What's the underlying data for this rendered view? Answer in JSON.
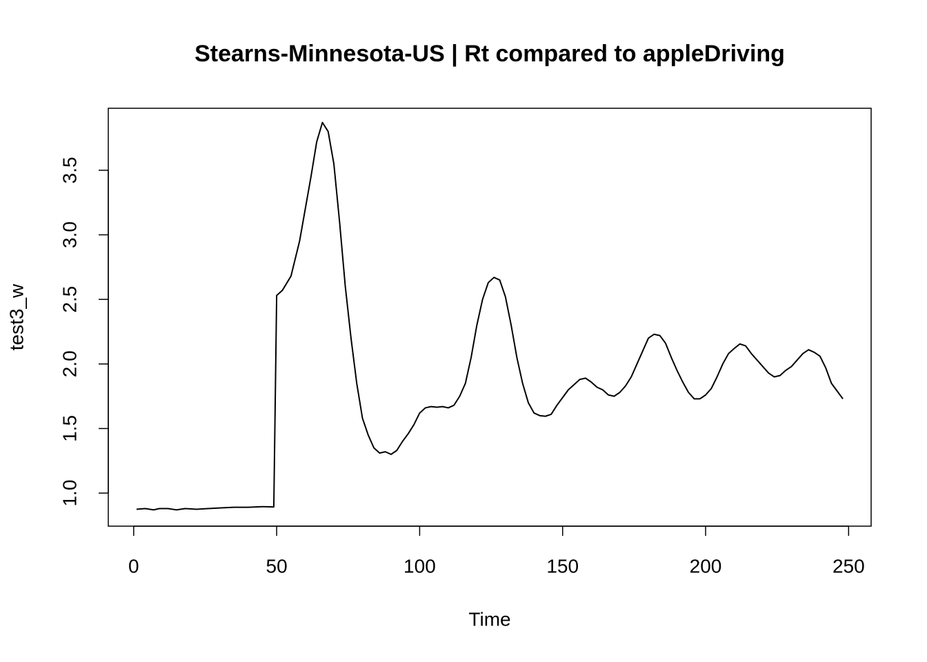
{
  "chart_data": {
    "type": "line",
    "title": "Stearns-Minnesota-US | Rt compared to appleDriving",
    "x_label": "Time",
    "y_label": "test3_w",
    "xlim": [
      -8.88,
      257.88
    ],
    "ylim": [
      0.744,
      3.98
    ],
    "xticks": [
      0,
      50,
      100,
      150,
      200,
      250
    ],
    "yticks": [
      {
        "value": 1,
        "label": "1.0"
      },
      1.5,
      {
        "value": 2,
        "label": "2.0"
      },
      2.5,
      {
        "value": 3,
        "label": "3.0"
      },
      3.5
    ],
    "x": [
      1,
      4,
      7,
      9,
      12,
      15,
      18,
      22,
      26,
      30,
      35,
      40,
      45,
      49,
      50,
      52,
      55,
      58,
      60,
      62,
      64,
      66,
      68,
      70,
      72,
      74,
      76,
      78,
      80,
      82,
      84,
      86,
      88,
      90,
      92,
      94,
      96,
      98,
      100,
      102,
      104,
      106,
      108,
      110,
      112,
      114,
      116,
      118,
      120,
      122,
      124,
      126,
      128,
      130,
      132,
      134,
      136,
      138,
      140,
      142,
      144,
      146,
      148,
      150,
      152,
      154,
      156,
      158,
      160,
      162,
      164,
      166,
      168,
      170,
      172,
      174,
      176,
      178,
      180,
      182,
      184,
      186,
      188,
      190,
      192,
      194,
      196,
      198,
      200,
      202,
      204,
      206,
      208,
      210,
      212,
      214,
      216,
      218,
      220,
      222,
      224,
      226,
      228,
      230,
      232,
      234,
      236,
      238,
      240,
      242,
      244,
      246,
      248
    ],
    "series": [
      {
        "color": "#000000",
        "values": [
          0.875,
          0.88,
          0.87,
          0.88,
          0.88,
          0.87,
          0.88,
          0.875,
          0.88,
          0.885,
          0.89,
          0.89,
          0.895,
          0.893,
          2.53,
          2.57,
          2.68,
          2.95,
          3.2,
          3.45,
          3.72,
          3.87,
          3.8,
          3.55,
          3.1,
          2.6,
          2.2,
          1.85,
          1.58,
          1.45,
          1.35,
          1.31,
          1.32,
          1.3,
          1.33,
          1.4,
          1.46,
          1.53,
          1.62,
          1.66,
          1.67,
          1.665,
          1.67,
          1.66,
          1.68,
          1.75,
          1.85,
          2.05,
          2.3,
          2.5,
          2.63,
          2.67,
          2.65,
          2.52,
          2.3,
          2.05,
          1.85,
          1.7,
          1.62,
          1.6,
          1.595,
          1.61,
          1.68,
          1.74,
          1.8,
          1.84,
          1.88,
          1.89,
          1.86,
          1.82,
          1.8,
          1.76,
          1.75,
          1.78,
          1.83,
          1.9,
          2.0,
          2.1,
          2.2,
          2.23,
          2.22,
          2.16,
          2.05,
          1.95,
          1.86,
          1.78,
          1.73,
          1.73,
          1.76,
          1.81,
          1.9,
          2.0,
          2.08,
          2.12,
          2.155,
          2.14,
          2.08,
          2.03,
          1.98,
          1.93,
          1.9,
          1.91,
          1.95,
          1.98,
          2.03,
          2.08,
          2.11,
          2.09,
          2.06,
          1.97,
          1.85,
          1.79,
          1.73
        ]
      }
    ]
  }
}
